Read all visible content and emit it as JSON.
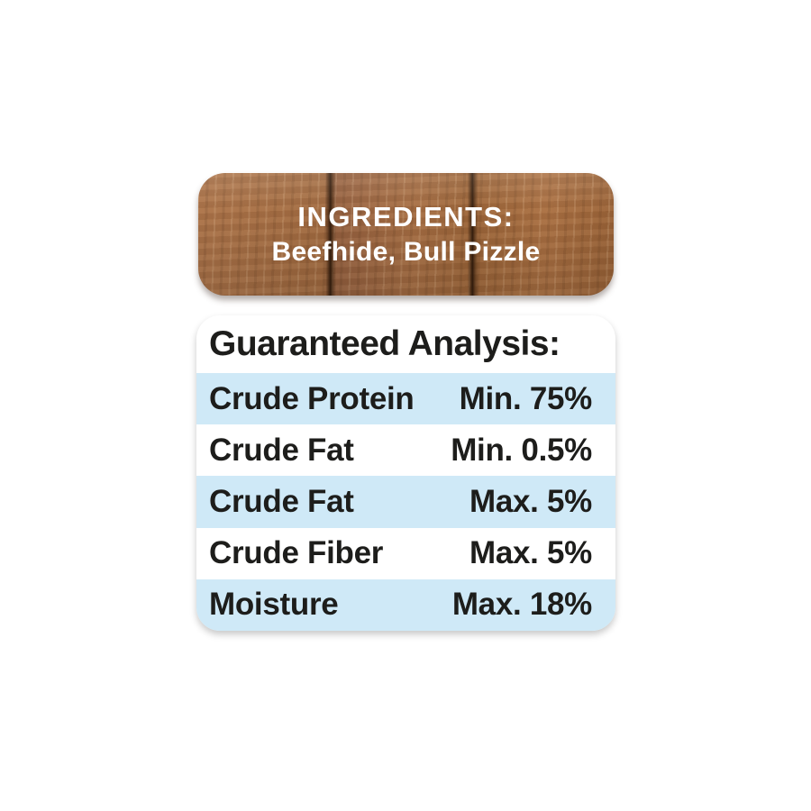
{
  "ingredients_panel": {
    "title": "INGREDIENTS:",
    "contents": "Beefhide, Bull Pizzle"
  },
  "guaranteed_analysis": {
    "title": "Guaranteed Analysis:",
    "rows": [
      {
        "label": "Crude Protein",
        "value": "Min. 75%"
      },
      {
        "label": "Crude Fat",
        "value": "Min. 0.5%"
      },
      {
        "label": "Crude Fat",
        "value": "Max. 5%"
      },
      {
        "label": "Crude Fiber",
        "value": "Max. 5%"
      },
      {
        "label": "Moisture",
        "value": "Max. 18%"
      }
    ]
  },
  "colors": {
    "wood_brown": "#a26b41",
    "wood_seam": "#47260b",
    "row_blue": "#cfe9f7",
    "text_black": "#1d1d1b",
    "text_white": "#ffffff",
    "background": "#ffffff"
  }
}
